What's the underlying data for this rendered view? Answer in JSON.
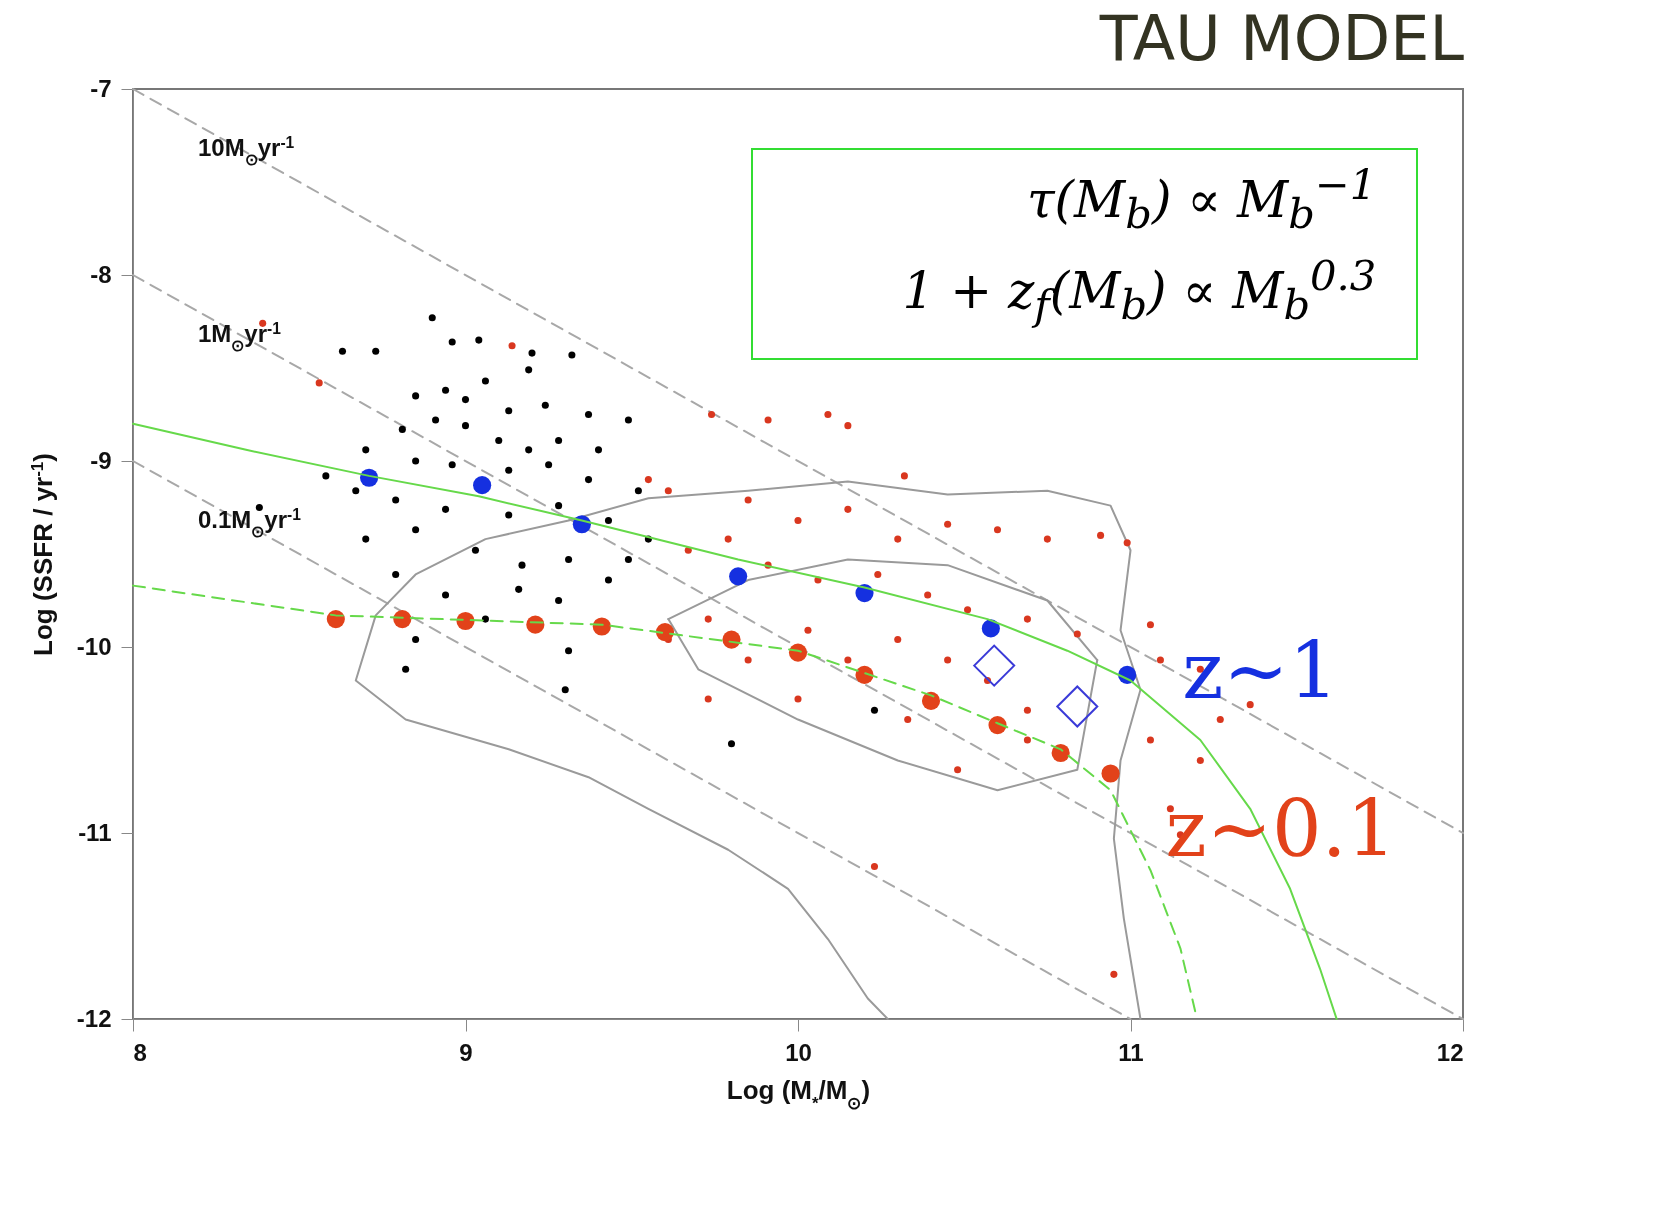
{
  "chart_data": {
    "type": "scatter",
    "title": "TAU MODEL",
    "xlabel": "Log (M$_{*}$/M$_{⊙}$)",
    "ylabel": "Log (SSFR / yr$^{-1}$)",
    "xlim": [
      8,
      12
    ],
    "ylim": [
      -12,
      -7
    ],
    "xticks": [
      8,
      9,
      10,
      11,
      12
    ],
    "yticks": [
      -7,
      -8,
      -9,
      -10,
      -11,
      -12
    ],
    "grid": false,
    "annotations": [
      "τ(M$_{b}$) ∝ M$_{b}$$^{−1}$",
      "1 + z$_{f}$(M$_{b}$) ∝ M$_{b}$$^{0.3}$"
    ],
    "series": [
      {
        "type": "line",
        "name": "10M$_{⊙}$yr$^{-1}$",
        "line_style": "dashed",
        "color": "#a8a8a8",
        "x": [
          8,
          12
        ],
        "values": [
          -7,
          -11
        ]
      },
      {
        "type": "line",
        "name": "1M$_{⊙}$yr$^{-1}$",
        "line_style": "dashed",
        "color": "#a8a8a8",
        "x": [
          8,
          12
        ],
        "values": [
          -8,
          -12
        ]
      },
      {
        "type": "line",
        "name": "0.1M$_{⊙}$yr$^{-1}$",
        "line_style": "dashed",
        "color": "#a8a8a8",
        "x": [
          8,
          11
        ],
        "values": [
          -9,
          -12
        ]
      },
      {
        "type": "line",
        "color": "#9a9a9a",
        "x": [
          11.03,
          10.98,
          10.95,
          10.97,
          11.03,
          10.97,
          11.0,
          10.94,
          10.75,
          10.45,
          10.15,
          9.85,
          9.55,
          9.31,
          9.06,
          8.85,
          8.73,
          8.67,
          8.82,
          9.13,
          9.37,
          9.55,
          9.79,
          9.97,
          10.09,
          10.21,
          10.27
        ],
        "values": [
          -12.0,
          -11.46,
          -11.03,
          -10.61,
          -10.23,
          -9.91,
          -9.48,
          -9.24,
          -9.16,
          -9.18,
          -9.11,
          -9.16,
          -9.2,
          -9.32,
          -9.42,
          -9.61,
          -9.83,
          -10.18,
          -10.39,
          -10.55,
          -10.7,
          -10.87,
          -11.09,
          -11.3,
          -11.57,
          -11.89,
          -12.0
        ]
      },
      {
        "type": "line",
        "color": "#9a9a9a",
        "x": [
          9.61,
          9.85,
          10.15,
          10.45,
          10.75,
          10.9
        ],
        "values": [
          -9.85,
          -9.64,
          -9.53,
          -9.56,
          -9.75,
          -10.07
        ]
      },
      {
        "type": "line",
        "color": "#9a9a9a",
        "x": [
          9.61,
          9.7,
          10.0,
          10.3,
          10.6,
          10.84,
          10.9
        ],
        "values": [
          -9.85,
          -10.12,
          -10.39,
          -10.61,
          -10.77,
          -10.66,
          -10.07
        ]
      },
      {
        "marker": "circle",
        "color": "#000000",
        "x": [
          8.9,
          8.96,
          9.04,
          9.2,
          9.32,
          9.19,
          8.85,
          8.94,
          9.0,
          9.06,
          9.13,
          9.24,
          9.37,
          9.49,
          8.81,
          8.91,
          9.0,
          9.1,
          9.19,
          9.28,
          9.4,
          8.7,
          8.85,
          8.96,
          9.13,
          9.25,
          9.37,
          9.52,
          8.58,
          8.67,
          8.79,
          8.94,
          9.13,
          9.28,
          9.43,
          9.55,
          8.7,
          8.85,
          9.03,
          9.17,
          9.31,
          9.49,
          8.79,
          8.94,
          9.16,
          9.28,
          9.43,
          8.85,
          9.06,
          9.31,
          9.3,
          8.82,
          9.8,
          10.23,
          8.38,
          8.63,
          8.73
        ],
        "values": [
          -8.23,
          -8.36,
          -8.35,
          -8.42,
          -8.43,
          -8.51,
          -8.65,
          -8.62,
          -8.67,
          -8.57,
          -8.73,
          -8.7,
          -8.75,
          -8.78,
          -8.83,
          -8.78,
          -8.81,
          -8.89,
          -8.94,
          -8.89,
          -8.94,
          -8.94,
          -9.0,
          -9.02,
          -9.05,
          -9.02,
          -9.1,
          -9.16,
          -9.08,
          -9.16,
          -9.21,
          -9.26,
          -9.29,
          -9.24,
          -9.32,
          -9.42,
          -9.42,
          -9.37,
          -9.48,
          -9.56,
          -9.53,
          -9.53,
          -9.61,
          -9.72,
          -9.69,
          -9.75,
          -9.64,
          -9.96,
          -9.85,
          -10.02,
          -10.23,
          -10.12,
          -10.52,
          -10.34,
          -9.25,
          -8.41,
          -8.41
        ]
      },
      {
        "marker": "circle",
        "color": "#d9371f",
        "x": [
          8.39,
          8.56,
          9.14,
          9.55,
          9.61,
          9.74,
          9.91,
          10.09,
          10.15,
          10.32,
          9.85,
          10.0,
          10.15,
          10.3,
          10.45,
          10.6,
          10.75,
          10.91,
          10.99,
          9.67,
          9.79,
          9.91,
          10.06,
          10.24,
          10.39,
          10.51,
          10.69,
          10.84,
          11.06,
          11.09,
          11.21,
          11.27,
          11.21,
          11.36,
          9.61,
          9.73,
          9.85,
          10.03,
          10.15,
          10.3,
          10.45,
          10.57,
          10.69,
          10.33,
          10.48,
          10.69,
          11.06,
          11.12,
          11.15,
          10.23,
          10.95,
          9.73,
          10.0
        ],
        "values": [
          -8.26,
          -8.58,
          -8.38,
          -9.1,
          -9.16,
          -8.75,
          -8.78,
          -8.75,
          -8.81,
          -9.08,
          -9.21,
          -9.32,
          -9.26,
          -9.42,
          -9.34,
          -9.37,
          -9.42,
          -9.4,
          -9.44,
          -9.48,
          -9.42,
          -9.56,
          -9.64,
          -9.61,
          -9.72,
          -9.8,
          -9.85,
          -9.93,
          -9.88,
          -10.07,
          -10.12,
          -10.39,
          -10.61,
          -10.31,
          -9.96,
          -9.85,
          -10.07,
          -9.91,
          -10.07,
          -9.96,
          -10.07,
          -10.18,
          -10.34,
          -10.39,
          -10.66,
          -10.5,
          -10.5,
          -10.87,
          -11.01,
          -11.18,
          -11.76,
          -10.28,
          -10.28
        ]
      },
      {
        "marker": "diamond",
        "color": "#3a3ad8",
        "x": [
          10.59,
          10.84
        ],
        "values": [
          -10.1,
          -10.32
        ]
      },
      {
        "marker": "circle",
        "name": "z~0.1",
        "color": "#e2421a",
        "x": [
          8.61,
          8.81,
          9.0,
          9.21,
          9.41,
          9.6,
          9.8,
          10.0,
          10.2,
          10.4,
          10.6,
          10.79,
          10.94
        ],
        "values": [
          -9.85,
          -9.85,
          -9.86,
          -9.88,
          -9.89,
          -9.92,
          -9.96,
          -10.03,
          -10.15,
          -10.29,
          -10.42,
          -10.57,
          -10.68
        ]
      },
      {
        "marker": "circle",
        "name": "z~1",
        "color": "#1530e0",
        "x": [
          8.71,
          9.05,
          9.35,
          9.82,
          10.2,
          10.58,
          10.99
        ],
        "values": [
          -9.09,
          -9.13,
          -9.34,
          -9.62,
          -9.71,
          -9.9,
          -10.15
        ]
      },
      {
        "type": "line",
        "color": "#66d94a",
        "x": [
          8,
          8.34,
          8.71,
          9.04,
          9.35,
          9.82,
          10.2,
          10.57,
          10.81,
          11.0,
          11.21,
          11.36,
          11.48,
          11.57,
          11.62
        ],
        "values": [
          -8.8,
          -8.94,
          -9.08,
          -9.19,
          -9.32,
          -9.53,
          -9.68,
          -9.85,
          -10.02,
          -10.18,
          -10.5,
          -10.87,
          -11.3,
          -11.73,
          -12
        ]
      },
      {
        "type": "line",
        "line_style": "dashed",
        "color": "#66d94a",
        "x": [
          8,
          8.61,
          9.41,
          10.0,
          10.4,
          10.6,
          10.79,
          10.94,
          11.06,
          11.15,
          11.2
        ],
        "values": [
          -9.67,
          -9.83,
          -9.88,
          -10.02,
          -10.26,
          -10.41,
          -10.55,
          -10.77,
          -11.2,
          -11.62,
          -12
        ]
      }
    ]
  }
}
